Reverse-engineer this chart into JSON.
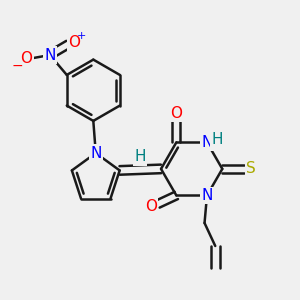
{
  "bg_color": "#f0f0f0",
  "bond_color": "#1a1a1a",
  "bond_width": 1.8,
  "atom_colors": {
    "N": "#0000ff",
    "O": "#ff0000",
    "S": "#aaaa00",
    "H": "#008080",
    "C": "#1a1a1a"
  },
  "font_size_atom": 11
}
